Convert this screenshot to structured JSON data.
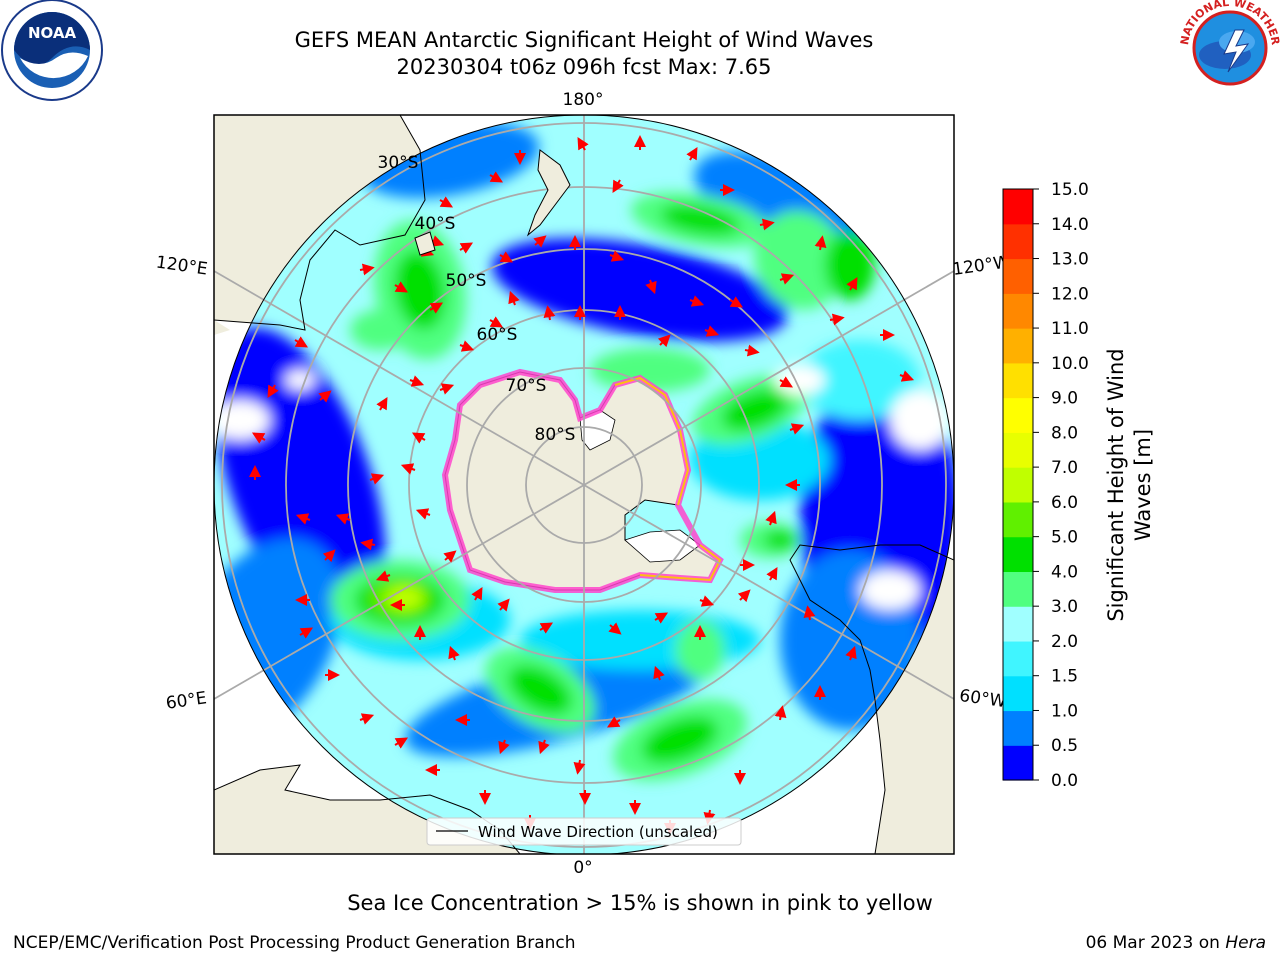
{
  "title": {
    "line1": "GEFS MEAN Antarctic Significant Height of Wind Waves",
    "line2": "20230304 t06z 096h fcst   Max: 7.65"
  },
  "map": {
    "projection": "south-polar-stereographic",
    "longitude_labels": [
      "180°",
      "120°E",
      "120°W",
      "60°E",
      "60°W",
      "0°"
    ],
    "latitude_labels": [
      "30°S",
      "40°S",
      "50°S",
      "60°S",
      "70°S",
      "80°S"
    ],
    "land_color": "#efeddd",
    "sea_ice_colors": [
      "#ff44cc",
      "#ffcc00"
    ],
    "arrow_color": "#ff0000",
    "legend_label": "Wind Wave Direction (unscaled)"
  },
  "colorbar": {
    "title_line1": "Significant Height of Wind",
    "title_line2": "Waves [m]",
    "ticks": [
      "0.0",
      "0.5",
      "1.0",
      "1.5",
      "2.0",
      "3.0",
      "4.0",
      "5.0",
      "6.0",
      "7.0",
      "8.0",
      "9.0",
      "10.0",
      "11.0",
      "12.0",
      "13.0",
      "14.0",
      "15.0"
    ],
    "colors": [
      "#0000ff",
      "#0080ff",
      "#00e0ff",
      "#40f5ff",
      "#a0ffff",
      "#50ff80",
      "#00e000",
      "#60f000",
      "#c0ff00",
      "#e8ff00",
      "#ffff00",
      "#ffe000",
      "#ffb000",
      "#ff8800",
      "#ff6000",
      "#ff3000",
      "#ff0000"
    ]
  },
  "logos": {
    "left_text": "NOAA",
    "right_ring_text": "NATIONAL WEATHER SERVICE"
  },
  "footer": {
    "caption": "Sea Ice Concentration > 15% is shown in pink to yellow",
    "credit": "NCEP/EMC/Verification Post Processing Product Generation Branch",
    "date": "06 Mar 2023 on",
    "host": "Hera"
  }
}
